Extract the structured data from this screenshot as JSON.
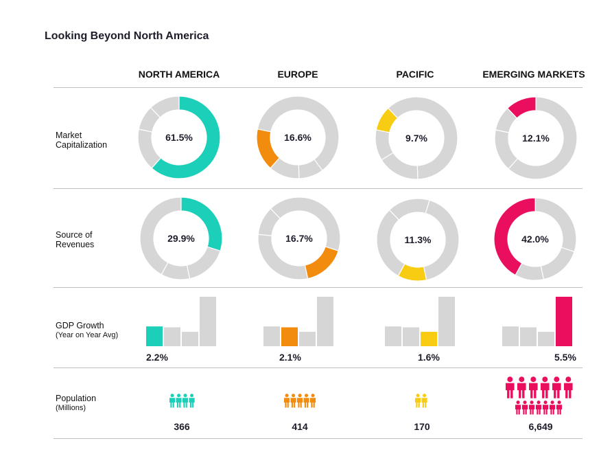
{
  "page": {
    "title": "Looking Beyond North America"
  },
  "colors": {
    "north_america": "#1ccfb8",
    "europe": "#f28c0f",
    "pacific": "#f7cc12",
    "emerging_markets": "#ea0f5e",
    "neutral": "#d6d6d6"
  },
  "columns": [
    {
      "key": "north_america",
      "label": "NORTH AMERICA"
    },
    {
      "key": "europe",
      "label": "EUROPE"
    },
    {
      "key": "pacific",
      "label": "PACIFIC"
    },
    {
      "key": "emerging_markets",
      "label": "EMERGING MARKETS"
    }
  ],
  "rows": {
    "market_cap": {
      "label_line1": "Market",
      "label_line2": "Capitalization"
    },
    "revenues": {
      "label_line1": "Source of",
      "label_line2": "Revenues"
    },
    "gdp": {
      "label": "GDP Growth",
      "sublabel": "(Year on Year Avg)"
    },
    "population": {
      "label": "Population",
      "sublabel": "(Millions)"
    }
  },
  "chart_data": [
    {
      "type": "pie",
      "title": "Market Capitalization",
      "categories": [
        "NORTH AMERICA",
        "EUROPE",
        "PACIFIC",
        "EMERGING MARKETS"
      ],
      "values": [
        61.5,
        16.6,
        9.7,
        12.1
      ],
      "start_angles_deg": [
        0,
        221.8,
        281.6,
        316.5
      ],
      "labels": [
        "61.5%",
        "16.6%",
        "9.7%",
        "12.1%"
      ]
    },
    {
      "type": "pie",
      "title": "Source of Revenues",
      "categories": [
        "NORTH AMERICA",
        "EUROPE",
        "PACIFIC",
        "EMERGING MARKETS"
      ],
      "values": [
        29.9,
        16.7,
        11.3,
        42.0
      ],
      "start_angles_deg": [
        0,
        107.6,
        167.8,
        208.8
      ],
      "labels": [
        "29.9%",
        "16.7%",
        "11.3%",
        "42.0%"
      ]
    },
    {
      "type": "bar",
      "title": "GDP Growth (Year on Year Avg)",
      "categories": [
        "NORTH AMERICA",
        "EUROPE",
        "PACIFIC",
        "EMERGING MARKETS"
      ],
      "values": [
        2.2,
        2.1,
        1.6,
        5.5
      ],
      "labels": [
        "2.2%",
        "2.1%",
        "1.6%",
        "5.5%"
      ],
      "ylim": [
        0,
        5.5
      ]
    },
    {
      "type": "bar",
      "title": "Population (Millions)",
      "categories": [
        "NORTH AMERICA",
        "EUROPE",
        "PACIFIC",
        "EMERGING MARKETS"
      ],
      "values": [
        366,
        414,
        170,
        6649
      ],
      "labels": [
        "366",
        "414",
        "170",
        "6,649"
      ]
    }
  ]
}
